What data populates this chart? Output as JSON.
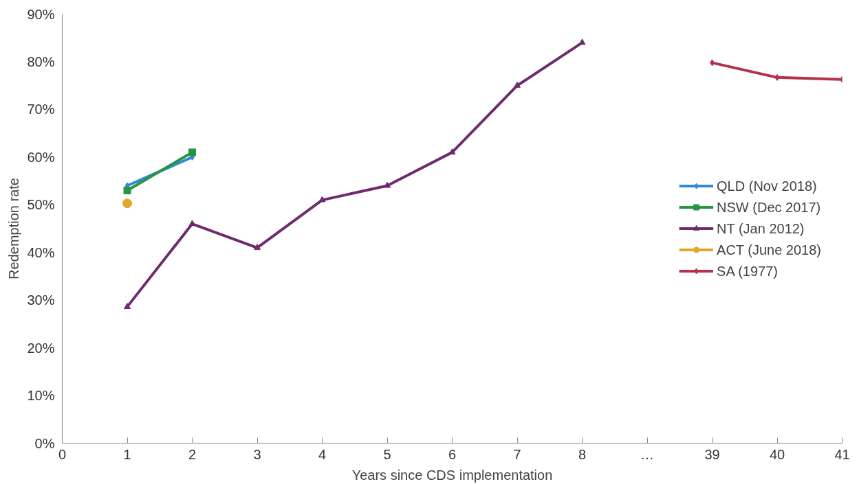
{
  "chart_data": {
    "type": "line",
    "xlabel": "Years since CDS implementation",
    "ylabel": "Redemption rate",
    "categories": [
      "0",
      "1",
      "2",
      "3",
      "4",
      "5",
      "6",
      "7",
      "8",
      "…",
      "39",
      "40",
      "41"
    ],
    "ylim": [
      0,
      90
    ],
    "yticks": [
      {
        "value": 0,
        "label": "0%"
      },
      {
        "value": 10,
        "label": "10%"
      },
      {
        "value": 20,
        "label": "20%"
      },
      {
        "value": 30,
        "label": "30%"
      },
      {
        "value": 40,
        "label": "40%"
      },
      {
        "value": 50,
        "label": "50%"
      },
      {
        "value": 60,
        "label": "60%"
      },
      {
        "value": 70,
        "label": "70%"
      },
      {
        "value": 80,
        "label": "80%"
      },
      {
        "value": 90,
        "label": "90%"
      }
    ],
    "legend": "right",
    "series": [
      {
        "name": "QLD (Nov 2018)",
        "color": "#2e8bd1",
        "marker": "diamond",
        "values": [
          null,
          54,
          60,
          null,
          null,
          null,
          null,
          null,
          null,
          null,
          null,
          null,
          null
        ]
      },
      {
        "name": "NSW (Dec 2017)",
        "color": "#279443",
        "marker": "square",
        "values": [
          null,
          53,
          61,
          null,
          null,
          null,
          null,
          null,
          null,
          null,
          null,
          null,
          null
        ]
      },
      {
        "name": "NT (Jan 2012)",
        "color": "#6e2c6e",
        "marker": "triangle",
        "values": [
          null,
          28.6,
          46,
          41,
          51,
          54,
          61,
          75,
          84,
          null,
          null,
          null,
          null
        ]
      },
      {
        "name": "ACT (June 2018)",
        "color": "#e6a52a",
        "marker": "circle",
        "values": [
          null,
          50.3,
          null,
          null,
          null,
          null,
          null,
          null,
          null,
          null,
          null,
          null,
          null
        ]
      },
      {
        "name": "SA (1977)",
        "color": "#b5304d",
        "marker": "diamond",
        "values": [
          null,
          null,
          null,
          null,
          null,
          null,
          null,
          null,
          null,
          null,
          79.8,
          76.7,
          76.3
        ]
      }
    ]
  }
}
